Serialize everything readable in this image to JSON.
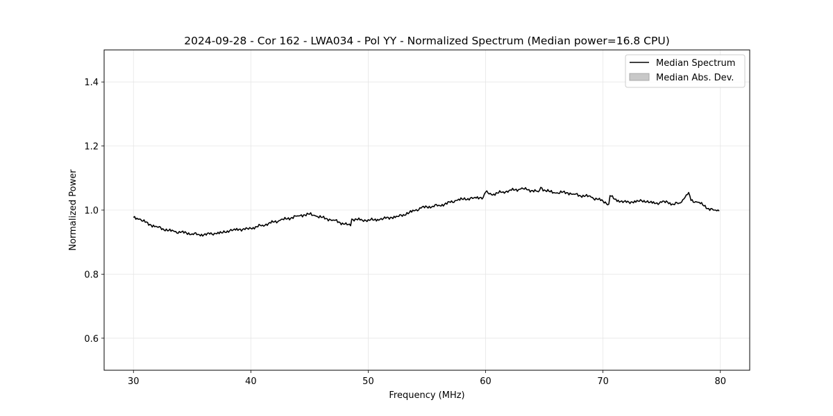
{
  "chart_data": {
    "type": "line",
    "title": "2024-09-28 - Cor 162 - LWA034 - Pol YY - Normalized Spectrum (Median power=16.8 CPU)",
    "xlabel": "Frequency (MHz)",
    "ylabel": "Normalized Power",
    "xlim": [
      27.5,
      82.5
    ],
    "ylim": [
      0.5,
      1.5
    ],
    "xticks": [
      30,
      40,
      50,
      60,
      70,
      80
    ],
    "yticks": [
      0.6,
      0.8,
      1.0,
      1.2,
      1.4
    ],
    "xtick_labels": [
      "30",
      "40",
      "50",
      "60",
      "70",
      "80"
    ],
    "ytick_labels": [
      "0.6",
      "0.8",
      "1.0",
      "1.2",
      "1.4"
    ],
    "grid": true,
    "legend": {
      "position": "top-right",
      "entries": [
        {
          "label": "Median Spectrum",
          "kind": "line",
          "color": "#000000"
        },
        {
          "label": "Median Abs. Dev.",
          "kind": "band",
          "color": "#c8c8c8"
        }
      ]
    },
    "series": [
      {
        "name": "Median Spectrum",
        "color": "#000000",
        "x": [
          30.0,
          30.5,
          31.0,
          31.5,
          32.0,
          32.5,
          33.0,
          33.5,
          34.0,
          34.5,
          35.0,
          35.5,
          36.0,
          36.5,
          37.0,
          37.5,
          38.0,
          38.5,
          39.0,
          39.5,
          40.0,
          40.5,
          41.0,
          41.5,
          42.0,
          42.5,
          43.0,
          43.5,
          44.0,
          44.5,
          45.0,
          45.5,
          46.0,
          46.5,
          47.0,
          47.5,
          48.0,
          48.5,
          48.6,
          49.0,
          49.5,
          50.0,
          50.5,
          51.0,
          51.5,
          52.0,
          52.5,
          53.0,
          53.5,
          54.0,
          54.5,
          55.0,
          55.5,
          56.0,
          56.5,
          57.0,
          57.5,
          58.0,
          58.5,
          59.0,
          59.5,
          59.8,
          60.0,
          60.5,
          61.0,
          61.5,
          62.0,
          62.5,
          63.0,
          63.5,
          64.0,
          64.5,
          64.7,
          65.0,
          65.5,
          66.0,
          66.5,
          67.0,
          67.5,
          68.0,
          68.5,
          69.0,
          69.5,
          70.0,
          70.5,
          70.6,
          71.0,
          71.5,
          72.0,
          72.5,
          73.0,
          73.5,
          74.0,
          74.5,
          75.0,
          75.5,
          76.0,
          76.5,
          76.9,
          77.3,
          77.5,
          78.0,
          78.3,
          78.5,
          79.0,
          79.5,
          79.9
        ],
        "values": [
          0.977,
          0.972,
          0.962,
          0.953,
          0.948,
          0.942,
          0.936,
          0.933,
          0.93,
          0.929,
          0.926,
          0.924,
          0.923,
          0.925,
          0.927,
          0.929,
          0.935,
          0.938,
          0.94,
          0.939,
          0.943,
          0.948,
          0.953,
          0.958,
          0.963,
          0.968,
          0.972,
          0.977,
          0.982,
          0.985,
          0.987,
          0.982,
          0.977,
          0.973,
          0.969,
          0.963,
          0.956,
          0.951,
          0.972,
          0.971,
          0.968,
          0.97,
          0.969,
          0.971,
          0.974,
          0.977,
          0.98,
          0.986,
          0.992,
          0.999,
          1.006,
          1.01,
          1.012,
          1.015,
          1.018,
          1.024,
          1.03,
          1.034,
          1.036,
          1.038,
          1.039,
          1.04,
          1.056,
          1.048,
          1.053,
          1.057,
          1.061,
          1.063,
          1.066,
          1.064,
          1.061,
          1.057,
          1.071,
          1.063,
          1.057,
          1.053,
          1.055,
          1.054,
          1.05,
          1.046,
          1.044,
          1.04,
          1.034,
          1.028,
          1.019,
          1.045,
          1.034,
          1.027,
          1.024,
          1.025,
          1.028,
          1.03,
          1.024,
          1.021,
          1.024,
          1.025,
          1.018,
          1.022,
          1.035,
          1.055,
          1.03,
          1.025,
          1.02,
          1.016,
          1.005,
          1.0,
          0.997
        ]
      }
    ]
  }
}
